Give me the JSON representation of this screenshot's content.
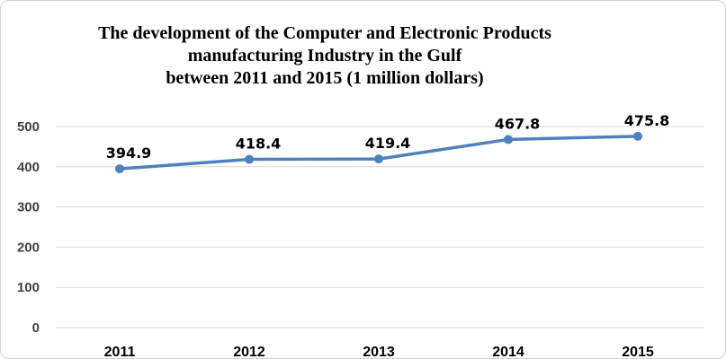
{
  "chart_data": {
    "type": "line",
    "title_lines": [
      "The development of the Computer and Electronic Products",
      "manufacturing Industry in the Gulf",
      "between 2011 and 2015 (1 million dollars)"
    ],
    "categories": [
      "2011",
      "2012",
      "2013",
      "2014",
      "2015"
    ],
    "series": [
      {
        "values": [
          394.9,
          418.4,
          419.4,
          467.8,
          475.8
        ],
        "color": "#4f81bd"
      }
    ],
    "data_labels": [
      "394.9",
      "418.4",
      "419.4",
      "467.8",
      "475.8"
    ],
    "yticks": [
      0,
      100,
      200,
      300,
      400,
      500
    ],
    "ylim": [
      0,
      500
    ],
    "grid": true,
    "legend": "none"
  }
}
